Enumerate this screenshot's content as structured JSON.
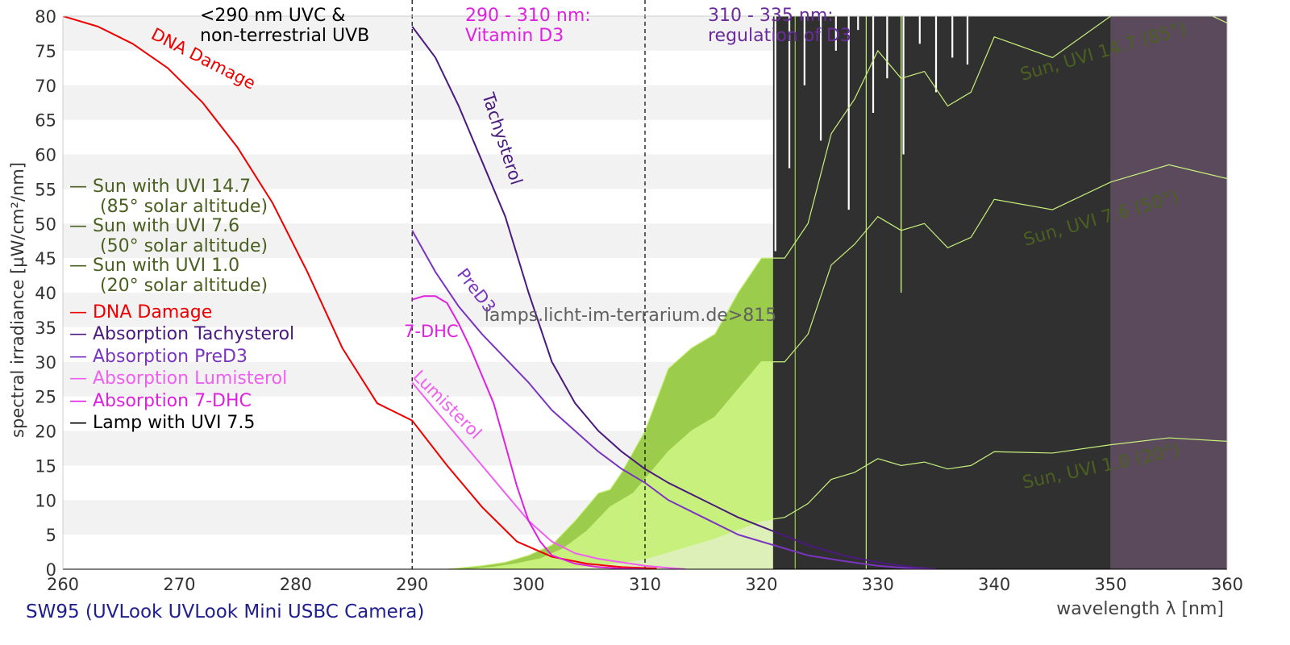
{
  "caption": "SW95 (UVLook UVLook Mini USBC Camera)",
  "watermark": "lamps.licht-im-terrarium.de>815",
  "chart_data": {
    "type": "area",
    "xlabel": "wavelength λ [nm]",
    "ylabel": "spectral irradiance [µW/cm²/nm]",
    "xlim": [
      260,
      360
    ],
    "ylim": [
      0,
      80
    ],
    "xticks": [
      "260",
      "270",
      "280",
      "290",
      "300",
      "310",
      "320",
      "330",
      "340",
      "350",
      "360"
    ],
    "yticks": [
      "0",
      "5",
      "10",
      "15",
      "20",
      "25",
      "30",
      "35",
      "40",
      "45",
      "50",
      "55",
      "60",
      "65",
      "70",
      "75",
      "80"
    ],
    "grid": "horizontal bands",
    "region_boundaries": [
      290,
      310
    ],
    "region_labels": [
      {
        "text": [
          "<290 nm UVC &",
          "non-terrestrial UVB"
        ],
        "color": "#000000"
      },
      {
        "text": [
          "290 - 310 nm:",
          "Vitamin D3"
        ],
        "color": "#e020e0"
      },
      {
        "text": [
          "310 - 335 nm:",
          "regulation of D3"
        ],
        "color": "#6a2c9a"
      }
    ],
    "legend_placement": "left",
    "legend": [
      {
        "text": [
          "— Sun with UVI 14.7",
          "(85° solar altitude)"
        ],
        "color": "#4a6020"
      },
      {
        "text": [
          "— Sun with UVI 7.6",
          "(50° solar altitude)"
        ],
        "color": "#4a6020"
      },
      {
        "text": [
          "— Sun with UVI 1.0",
          "(20° solar altitude)"
        ],
        "color": "#4a6020"
      },
      {
        "text": [
          "— DNA Damage"
        ],
        "color": "#ee0000"
      },
      {
        "text": [
          "— Absorption Tachysterol"
        ],
        "color": "#4b1a7e"
      },
      {
        "text": [
          "— Absorption PreD3"
        ],
        "color": "#7a35c0"
      },
      {
        "text": [
          "— Absorption Lumisterol"
        ],
        "color": "#f060f0"
      },
      {
        "text": [
          "— Absorption 7-DHC"
        ],
        "color": "#e020e0"
      },
      {
        "text": [
          "— Lamp with UVI 7.5"
        ],
        "color": "#000000"
      }
    ],
    "areas": [
      {
        "name": "Sun with UVI 14.7",
        "color": "#9ccc4c",
        "x": [
          293,
          296,
          298,
          300,
          302,
          304,
          305,
          306,
          307,
          308,
          309,
          310,
          312,
          314,
          316,
          318,
          320,
          322,
          324,
          326,
          328,
          330,
          332,
          334,
          336,
          338,
          340,
          345,
          350,
          355,
          360
        ],
        "y": [
          0,
          0.5,
          1,
          2,
          3.5,
          7,
          9,
          11,
          11.5,
          14,
          17,
          20,
          29,
          32,
          34,
          40,
          45,
          45,
          50,
          63,
          68,
          75,
          71,
          72,
          67,
          69,
          77,
          74,
          80,
          83,
          79
        ]
      },
      {
        "name": "Sun with UVI 7.6",
        "color": "#c8f07c",
        "x": [
          295,
          297,
          299,
          301,
          303,
          305,
          307,
          309,
          310,
          312,
          314,
          316,
          318,
          320,
          322,
          324,
          326,
          328,
          330,
          332,
          334,
          336,
          338,
          340,
          345,
          350,
          355,
          360
        ],
        "y": [
          0,
          0.3,
          0.8,
          1.5,
          3,
          5.5,
          9,
          11,
          13,
          17,
          20,
          22,
          26,
          30,
          30,
          34,
          44,
          47,
          51,
          49,
          50,
          46.5,
          48,
          53.5,
          52,
          56,
          58.5,
          56.5
        ]
      },
      {
        "name": "Sun with UVI 1.0",
        "color": "#ddf0b8",
        "x": [
          300,
          304,
          308,
          310,
          313,
          316,
          320,
          322,
          324,
          326,
          328,
          330,
          332,
          334,
          336,
          338,
          340,
          345,
          350,
          355,
          360
        ],
        "y": [
          0,
          0.3,
          1,
          1.5,
          3,
          4.5,
          7,
          7.5,
          9.5,
          13,
          14,
          16,
          15,
          15.5,
          14.5,
          15,
          17,
          16.8,
          18,
          19,
          18.5
        ]
      }
    ],
    "lamp": {
      "name": "Lamp with UVI 7.5",
      "color": "#303030",
      "start": 321,
      "end": 350,
      "violet_region": [
        350,
        360
      ],
      "violet_color": "#5a4a5c"
    },
    "series": [
      {
        "name": "DNA Damage",
        "color": "#ee0000",
        "x": [
          260,
          263,
          266,
          269,
          272,
          275,
          278,
          281,
          284,
          287,
          290,
          293,
          296,
          299,
          302,
          305,
          308,
          311
        ],
        "y": [
          80,
          78.5,
          76,
          72.5,
          67.5,
          61,
          53,
          43,
          32,
          24,
          21.5,
          15,
          9,
          4,
          1.8,
          0.8,
          0.3,
          0.1
        ]
      },
      {
        "name": "Absorption Tachysterol",
        "color": "#4b1a7e",
        "x": [
          290,
          292,
          294,
          296,
          298,
          300,
          302,
          304,
          306,
          308,
          310,
          312,
          315,
          318,
          321,
          324,
          327,
          330,
          333,
          335
        ],
        "y": [
          78.5,
          74,
          67,
          59,
          51,
          40,
          30,
          24,
          20,
          17,
          14.5,
          12.5,
          10,
          7.5,
          5.5,
          3.5,
          2,
          1,
          0.3,
          0
        ]
      },
      {
        "name": "Absorption PreD3",
        "color": "#7a35c0",
        "x": [
          290,
          292,
          294,
          296,
          298,
          300,
          302,
          304,
          306,
          308,
          310,
          312,
          315,
          318,
          321,
          324,
          327,
          330,
          333,
          335
        ],
        "y": [
          49,
          43,
          38,
          34,
          30.5,
          27,
          23,
          20,
          17,
          14.5,
          12.5,
          10,
          7.5,
          5,
          3.5,
          2,
          1.2,
          0.5,
          0.1,
          0
        ]
      },
      {
        "name": "Absorption Lumisterol",
        "color": "#f060f0",
        "x": [
          290,
          292,
          294,
          296,
          298,
          300,
          302,
          304,
          306,
          308,
          310,
          312,
          313.5
        ],
        "y": [
          27,
          23,
          19,
          15,
          11,
          7,
          4,
          2.3,
          1.5,
          1,
          0.5,
          0.2,
          0
        ]
      },
      {
        "name": "Absorption 7-DHC",
        "color": "#e020e0",
        "x": [
          290,
          291,
          292,
          293,
          294,
          295,
          296,
          297,
          298,
          299,
          300,
          301,
          302,
          304,
          306,
          308,
          310
        ],
        "y": [
          39,
          39.5,
          39.5,
          38.5,
          35.5,
          32,
          28,
          24,
          18,
          12,
          7,
          4,
          2,
          0.8,
          0.3,
          0.1,
          0
        ]
      }
    ],
    "curve_labels": [
      {
        "text": "DNA Damage",
        "color": "#ee0000"
      },
      {
        "text": "Tachysterol",
        "color": "#4b1a7e"
      },
      {
        "text": "PreD3",
        "color": "#7a35c0"
      },
      {
        "text": "7-DHC",
        "color": "#e020e0"
      },
      {
        "text": "Lumisterol",
        "color": "#f060f0"
      },
      {
        "text": "Sun, UVI 14.7 (85°)",
        "color": "#4a6020"
      },
      {
        "text": "Sun, UVI 7.6 (50°)",
        "color": "#4a6020"
      },
      {
        "text": "Sun, UVI 1.0 (20°)",
        "color": "#4a6020"
      }
    ]
  }
}
